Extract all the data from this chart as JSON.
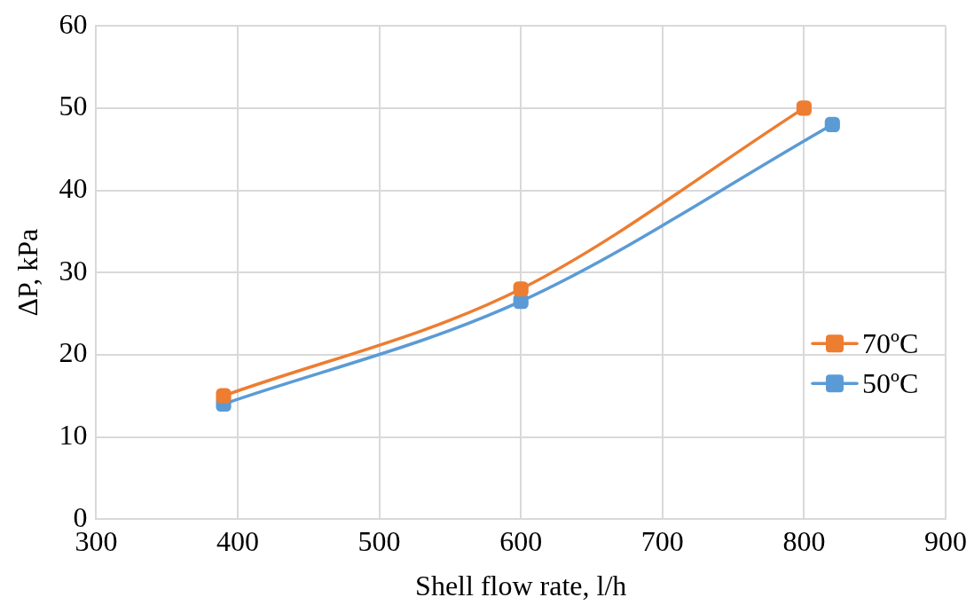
{
  "chart_data": {
    "type": "line",
    "xlabel": "Shell flow rate, l/h",
    "ylabel": "ΔP, kPa",
    "xlim": [
      300,
      900
    ],
    "xticks": [
      300,
      400,
      500,
      600,
      700,
      800,
      900
    ],
    "ylim": [
      0,
      60
    ],
    "yticks": [
      0,
      10,
      20,
      30,
      40,
      50,
      60
    ],
    "series": [
      {
        "name": "70ºC",
        "color": "#ed7d31",
        "x": [
          390,
          600,
          800
        ],
        "values": [
          15,
          28,
          50
        ]
      },
      {
        "name": "50ºC",
        "color": "#5b9bd5",
        "x": [
          390,
          600,
          820
        ],
        "values": [
          14,
          26.5,
          48
        ]
      }
    ],
    "grid": true,
    "legend": "right",
    "marker": "square",
    "line_style": "solid"
  }
}
